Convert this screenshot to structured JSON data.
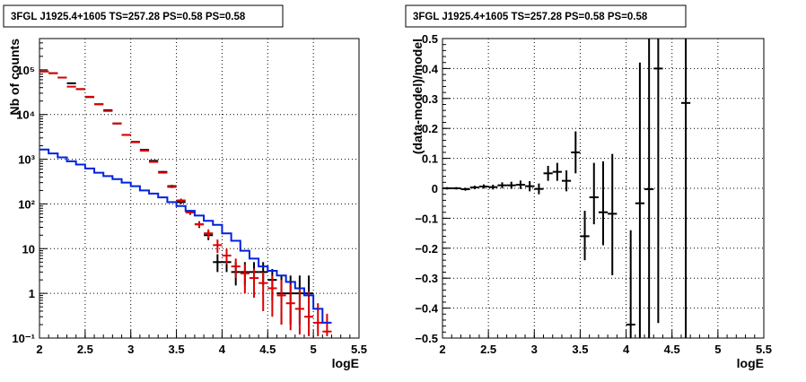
{
  "chart_data": [
    {
      "type": "step",
      "title": "3FGL J1925.4+1605 TS=257.28 PS=0.58 PS=0.58",
      "xlabel": "logE",
      "ylabel": "Nb of counts",
      "xlim": [
        2,
        5.5
      ],
      "ylim": [
        0.1,
        500000
      ],
      "yscale": "log",
      "grid": true,
      "xticks": [
        2,
        2.5,
        3,
        3.5,
        4,
        4.5,
        5,
        5.5
      ],
      "xtick_labels": [
        "2",
        "2.5",
        "3",
        "3.5",
        "4",
        "4.5",
        "5",
        "5.5"
      ],
      "yticks": [
        0.1,
        1,
        10,
        100,
        1000,
        10000,
        100000
      ],
      "ytick_labels": [
        "10⁻¹",
        "1",
        "10",
        "10²",
        "10³",
        "10⁴",
        "10⁵"
      ],
      "colors": {
        "data": "#000000",
        "model": "#dd0000",
        "second": "#0022dd"
      },
      "series": [
        {
          "role": "data",
          "style": "errorbar",
          "x": [
            2.05,
            2.15,
            2.25,
            2.35,
            2.45,
            2.55,
            2.65,
            2.75,
            2.85,
            2.95,
            3.05,
            3.15,
            3.25,
            3.35,
            3.45,
            3.55,
            3.65,
            3.75,
            3.85,
            3.95,
            4.05,
            4.15,
            4.25,
            4.35,
            4.45,
            4.55,
            4.65,
            4.75,
            4.85,
            4.95,
            5.05,
            5.15
          ],
          "y": [
            92000,
            84000,
            67000,
            50000,
            37000,
            24500,
            17000,
            12500,
            6300,
            3500,
            2450,
            1620,
            920,
            520,
            250,
            110,
            65,
            35,
            20,
            5,
            5,
            3,
            3,
            3,
            3,
            2,
            1,
            1,
            1,
            1,
            null,
            null
          ],
          "ylo": [
            91500,
            83500,
            66600,
            49600,
            36700,
            24300,
            16800,
            12300,
            6200,
            3440,
            2400,
            1580,
            890,
            497,
            234,
            100,
            57,
            29,
            15.5,
            3,
            3,
            1.5,
            1.5,
            1.5,
            1.5,
            0.7,
            0.2,
            0.2,
            0.2,
            0.2,
            null,
            null
          ],
          "yhi": [
            92500,
            84500,
            67400,
            50400,
            37300,
            24700,
            17200,
            12700,
            6400,
            3560,
            2500,
            1660,
            950,
            543,
            266,
            120,
            73,
            41,
            24.5,
            7.5,
            7.5,
            5,
            5,
            5,
            5,
            3.5,
            2.5,
            2.5,
            2.5,
            2.5,
            null,
            null
          ]
        },
        {
          "role": "model",
          "style": "errorbar",
          "x": [
            2.05,
            2.15,
            2.25,
            2.35,
            2.45,
            2.55,
            2.65,
            2.75,
            2.85,
            2.95,
            3.05,
            3.15,
            3.25,
            3.35,
            3.45,
            3.55,
            3.65,
            3.75,
            3.85,
            3.95,
            4.05,
            4.15,
            4.25,
            4.35,
            4.45,
            4.55,
            4.65,
            4.75,
            4.85,
            4.95,
            5.05,
            5.15
          ],
          "y": [
            92000,
            84000,
            67000,
            42000,
            37000,
            25000,
            17000,
            12000,
            6300,
            3500,
            2400,
            1550,
            870,
            500,
            240,
            120,
            65,
            35,
            22,
            12,
            7,
            4,
            2.8,
            2.2,
            1.7,
            1.3,
            0.9,
            0.6,
            0.45,
            0.3,
            0.22,
            0.14
          ],
          "ylo": [
            91500,
            83500,
            66600,
            41600,
            36700,
            24800,
            16800,
            11800,
            6200,
            3440,
            2350,
            1510,
            840,
            480,
            225,
            108,
            58,
            30,
            17,
            8,
            4.5,
            2.2,
            1,
            0.8,
            0.4,
            0.3,
            0.2,
            0.15,
            0.12,
            0.11,
            0.11,
            0.11
          ],
          "yhi": [
            92500,
            84500,
            67400,
            42400,
            37300,
            25200,
            17200,
            12200,
            6400,
            3560,
            2450,
            1590,
            900,
            520,
            255,
            132,
            72,
            40,
            27,
            16,
            10,
            6,
            4.5,
            3.6,
            3,
            2.5,
            2,
            1.6,
            1.3,
            1.1,
            0.6,
            0.35
          ]
        },
        {
          "role": "second",
          "style": "step",
          "x": [
            2.05,
            2.15,
            2.25,
            2.35,
            2.45,
            2.55,
            2.65,
            2.75,
            2.85,
            2.95,
            3.05,
            3.15,
            3.25,
            3.35,
            3.45,
            3.55,
            3.65,
            3.75,
            3.85,
            3.95,
            4.05,
            4.15,
            4.25,
            4.35,
            4.45,
            4.55,
            4.65,
            4.75,
            4.85,
            4.95,
            5.05,
            5.15
          ],
          "y": [
            1650,
            1350,
            1100,
            900,
            760,
            620,
            500,
            420,
            360,
            300,
            250,
            200,
            170,
            140,
            110,
            90,
            70,
            55,
            42,
            34,
            22,
            15,
            9,
            6,
            4,
            3.2,
            2.5,
            1.8,
            1.3,
            0.9,
            0.45,
            0.22
          ]
        }
      ]
    },
    {
      "type": "errorbar",
      "title": "3FGL J1925.4+1605 TS=257.28 PS=0.58 PS=0.58",
      "xlabel": "logE",
      "ylabel": "(data-model)/model",
      "xlim": [
        2,
        5.5
      ],
      "ylim": [
        -0.5,
        0.5
      ],
      "grid": true,
      "xticks": [
        2,
        2.5,
        3,
        3.5,
        4,
        4.5,
        5,
        5.5
      ],
      "xtick_labels": [
        "2",
        "2.5",
        "3",
        "3.5",
        "4",
        "4.5",
        "5",
        "5.5"
      ],
      "yticks": [
        -0.5,
        -0.4,
        -0.3,
        -0.2,
        -0.1,
        0,
        0.1,
        0.2,
        0.3,
        0.4,
        0.5
      ],
      "ytick_labels": [
        "−0.5",
        "−0.4",
        "−0.3",
        "−0.2",
        "−0.1",
        "0",
        "0.1",
        "0.2",
        "0.3",
        "0.4",
        "0.5"
      ],
      "colors": {
        "data": "#000000"
      },
      "series": [
        {
          "role": "data",
          "x": [
            2.05,
            2.15,
            2.25,
            2.35,
            2.45,
            2.55,
            2.65,
            2.75,
            2.85,
            2.95,
            3.05,
            3.15,
            3.25,
            3.35,
            3.45,
            3.55,
            3.65,
            3.75,
            3.85,
            4.05,
            4.15,
            4.25,
            4.35,
            4.65
          ],
          "y": [
            0.0,
            0.0,
            -0.003,
            0.003,
            0.006,
            0.004,
            0.01,
            0.01,
            0.012,
            0.007,
            -0.002,
            0.05,
            0.055,
            0.025,
            0.12,
            -0.16,
            -0.03,
            -0.08,
            -0.085,
            -0.455,
            -0.05,
            -0.003,
            0.4,
            0.285
          ],
          "ylo": [
            -0.004,
            -0.004,
            -0.008,
            -0.003,
            -0.001,
            -0.004,
            0.0,
            -0.002,
            -0.002,
            -0.01,
            -0.02,
            0.025,
            0.025,
            -0.01,
            0.05,
            -0.24,
            -0.12,
            -0.19,
            -0.29,
            -0.5,
            -0.5,
            -0.5,
            -0.45,
            -0.5
          ],
          "yhi": [
            0.004,
            0.004,
            0.002,
            0.009,
            0.013,
            0.012,
            0.02,
            0.022,
            0.026,
            0.024,
            0.016,
            0.075,
            0.085,
            0.06,
            0.19,
            -0.075,
            0.085,
            0.09,
            0.115,
            -0.14,
            0.42,
            0.5,
            0.5,
            0.5
          ]
        }
      ]
    }
  ]
}
